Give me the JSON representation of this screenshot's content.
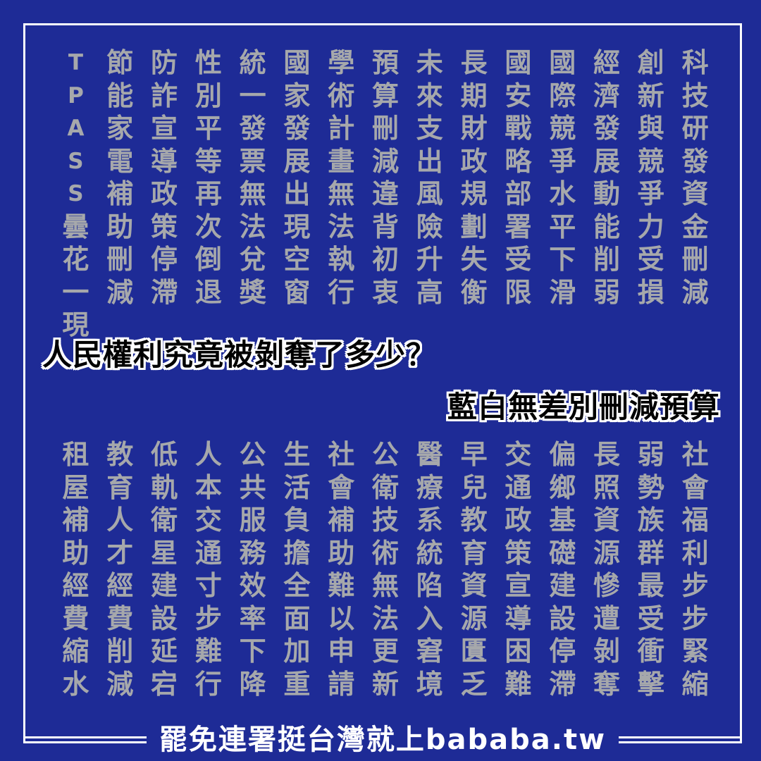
{
  "colors": {
    "background": "#1e2b96",
    "grid_text": "#a6a8ab",
    "headline_text": "#000000",
    "outline": "#ffffff"
  },
  "top_columns": [
    "科技研發資金刪減",
    "創新與競爭力受損",
    "經濟發展動能削弱",
    "國際競爭水平下滑",
    "國安戰略部署受限",
    "長期財政規劃失衡",
    "未來支出風險升高",
    "預算刪減違背初衷",
    "學術計畫無法執行",
    "國家發展出現空窗",
    "統一發票無法兌獎",
    "性別平等再次倒退",
    "防詐宣導政策停滯",
    "節能家電補助刪減",
    "TPASS曇花一現"
  ],
  "headline": "人民權利究竟被剝奪了多少？",
  "subheadline": "藍白無差別刪減預算",
  "bottom_columns": [
    "社會福利步步緊縮",
    "弱勢族群最受衝擊",
    "長照資源慘遭剝奪",
    "偏鄉基礎建設停滯",
    "交通政策宣導困難",
    "早兒教育資源匱乏",
    "醫療系統陷入窘境",
    "公衛技術無法更新",
    "社會補助難以申請",
    "生活負擔全面加重",
    "公共服務效率下降",
    "人本交通寸步難行",
    "低軌衛星建設延宕",
    "教育人才經費削減",
    "租屋補助經費縮水"
  ],
  "footer": "罷免連署挺台灣就上bababa.tw"
}
